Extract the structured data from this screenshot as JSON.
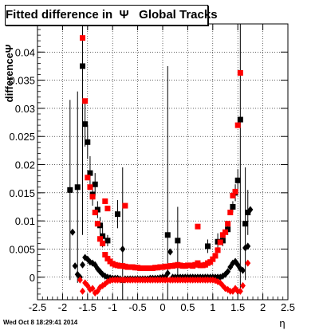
{
  "chart_data": {
    "type": "scatter",
    "title": "Fitted difference in  Ψ   Global Tracks",
    "xlabel": "η",
    "ylabel": "differenceΨ",
    "xlim": [
      -2.5,
      2.5
    ],
    "ylim": [
      -0.004,
      0.045
    ],
    "xticks": [
      -2.5,
      -2,
      -1.5,
      -1,
      -0.5,
      0,
      0.5,
      1,
      1.5,
      2,
      2.5
    ],
    "yticks": [
      0,
      0.005,
      0.01,
      0.015,
      0.02,
      0.025,
      0.03,
      0.035,
      0.04
    ],
    "grid": true,
    "series": [
      {
        "marker": "square",
        "color": "#000000",
        "points": [
          [
            -1.85,
            0.0155
          ],
          [
            -1.7,
            0.016
          ],
          [
            -1.6,
            0.0375
          ],
          [
            -1.55,
            0.0272
          ],
          [
            -1.5,
            0.024
          ],
          [
            -1.45,
            0.0185
          ],
          [
            -1.4,
            0.0147
          ],
          [
            -1.35,
            0.0165
          ],
          [
            -1.3,
            0.012
          ],
          [
            -1.25,
            0.0092
          ],
          [
            -1.2,
            0.0073
          ],
          [
            -1.1,
            0.0065
          ],
          [
            -0.9,
            0.0112
          ],
          [
            -0.8,
            -0.0005
          ],
          [
            0.1,
            0.0075
          ],
          [
            0.3,
            0.0065
          ],
          [
            0.9,
            0.0055
          ],
          [
            1.1,
            0.0063
          ],
          [
            1.2,
            0.0065
          ],
          [
            1.3,
            0.0085
          ],
          [
            1.4,
            0.0125
          ],
          [
            1.45,
            0.015
          ],
          [
            1.5,
            0.0172
          ],
          [
            1.55,
            0.028
          ],
          [
            1.65,
            0.0095
          ],
          [
            1.7,
            0.0115
          ]
        ],
        "errors": [
          0.016,
          0.017,
          0.03,
          0.004,
          0.003,
          0.003,
          0.002,
          0.002,
          0.0015,
          0.0015,
          0.002,
          0.001,
          0.0025,
          0.02,
          0.03,
          0.006,
          0.0012,
          0.0015,
          0.001,
          0.001,
          0.001,
          0.0015,
          0.002,
          0.03,
          0.01,
          0.004
        ]
      },
      {
        "marker": "square",
        "color": "#ff0000",
        "points": [
          [
            -1.6,
            0.0425
          ],
          [
            -1.55,
            0.0313
          ],
          [
            -1.5,
            0.0177
          ],
          [
            -1.45,
            0.016
          ],
          [
            -1.4,
            0.0143
          ],
          [
            -1.35,
            0.0115
          ],
          [
            -1.3,
            0.0095
          ],
          [
            -1.25,
            0.0068
          ],
          [
            -1.2,
            0.006
          ],
          [
            -1.15,
            0.004
          ],
          [
            -1.1,
            0.0033
          ],
          [
            -1.05,
            0.0028
          ],
          [
            -1.0,
            0.0024
          ],
          [
            -0.95,
            0.0022
          ],
          [
            -0.9,
            0.0021
          ],
          [
            -0.85,
            0.002
          ],
          [
            -0.8,
            0.002
          ],
          [
            -0.75,
            0.0019
          ],
          [
            -0.7,
            0.0018
          ],
          [
            -0.65,
            0.0018
          ],
          [
            -0.6,
            0.0018
          ],
          [
            -0.55,
            0.0017
          ],
          [
            -0.5,
            0.0017
          ],
          [
            -0.45,
            0.0016
          ],
          [
            -0.4,
            0.0016
          ],
          [
            -0.35,
            0.0016
          ],
          [
            -0.3,
            0.0016
          ],
          [
            -0.25,
            0.0016
          ],
          [
            -0.2,
            0.0016
          ],
          [
            -0.15,
            0.0017
          ],
          [
            -0.1,
            0.0017
          ],
          [
            -0.05,
            0.0018
          ],
          [
            0.0,
            0.0018
          ],
          [
            0.05,
            0.0019
          ],
          [
            0.1,
            0.0019
          ],
          [
            0.15,
            0.002
          ],
          [
            0.2,
            0.002
          ],
          [
            0.25,
            0.0021
          ],
          [
            0.3,
            0.0022
          ],
          [
            0.35,
            0.0021
          ],
          [
            0.4,
            0.002
          ],
          [
            0.45,
            0.002
          ],
          [
            0.5,
            0.0021
          ],
          [
            0.55,
            0.0021
          ],
          [
            0.6,
            0.002
          ],
          [
            0.65,
            0.0022
          ],
          [
            0.7,
            0.0025
          ],
          [
            0.75,
            0.0021
          ],
          [
            0.8,
            0.0021
          ],
          [
            0.85,
            0.0022
          ],
          [
            0.9,
            0.0025
          ],
          [
            0.95,
            0.0027
          ],
          [
            1.0,
            0.0032
          ],
          [
            1.05,
            0.0038
          ],
          [
            1.1,
            0.0048
          ],
          [
            1.15,
            0.0062
          ],
          [
            1.2,
            0.0075
          ],
          [
            1.25,
            0.008
          ],
          [
            1.3,
            0.0095
          ],
          [
            1.35,
            0.0115
          ],
          [
            1.4,
            0.0145
          ],
          [
            1.45,
            0.0152
          ],
          [
            1.5,
            0.027
          ],
          [
            1.55,
            0.0363
          ],
          [
            -1.15,
            0.0135
          ],
          [
            -1.1,
            0.0122
          ],
          [
            -0.75,
            0.0127
          ],
          [
            0.7,
            0.009
          ]
        ]
      },
      {
        "marker": "diamond",
        "color": "#000000",
        "points": [
          [
            -1.8,
            0.008
          ],
          [
            -1.75,
            0.002
          ],
          [
            -1.7,
            0.0005
          ],
          [
            -1.65,
            0.0
          ],
          [
            -1.6,
            0.0022
          ],
          [
            -1.55,
            0.0035
          ],
          [
            -1.5,
            0.0032
          ],
          [
            -1.45,
            0.0027
          ],
          [
            -1.4,
            0.0025
          ],
          [
            -1.35,
            0.0022
          ],
          [
            -1.3,
            0.0015
          ],
          [
            -1.25,
            0.001
          ],
          [
            -1.2,
            0.0005
          ],
          [
            -1.15,
            0.0002
          ],
          [
            -1.1,
            0.0
          ],
          [
            -1.05,
            -0.0001
          ],
          [
            -1.0,
            -0.0002
          ],
          [
            -0.95,
            -0.0002
          ],
          [
            -0.9,
            -0.0002
          ],
          [
            -0.85,
            -0.0003
          ],
          [
            -0.8,
            0.005
          ],
          [
            -0.75,
            -0.0003
          ],
          [
            -0.7,
            -0.0003
          ],
          [
            -0.65,
            -0.0003
          ],
          [
            -0.6,
            -0.0003
          ],
          [
            -0.55,
            -0.0003
          ],
          [
            -0.5,
            -0.0003
          ],
          [
            -0.45,
            -0.0003
          ],
          [
            -0.4,
            -0.0003
          ],
          [
            -0.35,
            -0.0003
          ],
          [
            -0.3,
            -0.0003
          ],
          [
            -0.25,
            -0.0002
          ],
          [
            -0.2,
            -0.0002
          ],
          [
            -0.15,
            -0.0002
          ],
          [
            -0.1,
            -0.0002
          ],
          [
            -0.05,
            -0.0001
          ],
          [
            0.0,
            0.0
          ],
          [
            0.05,
            0.0
          ],
          [
            0.1,
            0.0007
          ],
          [
            0.15,
            0.0045
          ],
          [
            0.2,
            0.0
          ],
          [
            0.25,
            0.0
          ],
          [
            0.3,
            0.0
          ],
          [
            0.35,
            0.0
          ],
          [
            0.4,
            0.0
          ],
          [
            0.45,
            0.0
          ],
          [
            0.5,
            0.0
          ],
          [
            0.55,
            0.0
          ],
          [
            0.6,
            0.0
          ],
          [
            0.65,
            0.0
          ],
          [
            0.7,
            0.0
          ],
          [
            0.75,
            0.0
          ],
          [
            0.8,
            0.0
          ],
          [
            0.85,
            0.0
          ],
          [
            0.9,
            0.0
          ],
          [
            0.95,
            0.0
          ],
          [
            1.0,
            0.0
          ],
          [
            1.05,
            0.0
          ],
          [
            1.1,
            0.0
          ],
          [
            1.15,
            0.0
          ],
          [
            1.2,
            0.0002
          ],
          [
            1.25,
            0.0005
          ],
          [
            1.3,
            0.001
          ],
          [
            1.35,
            0.0018
          ],
          [
            1.4,
            0.0025
          ],
          [
            1.45,
            0.0028
          ],
          [
            1.5,
            0.0022
          ],
          [
            1.55,
            0.0015
          ],
          [
            1.6,
            0.0012
          ],
          [
            1.65,
            0.0052
          ],
          [
            1.7,
            0.0055
          ],
          [
            1.75,
            0.012
          ]
        ]
      },
      {
        "marker": "diamond",
        "color": "#ff0000",
        "points": [
          [
            -1.65,
            -0.0005
          ],
          [
            -1.6,
            -0.0025
          ],
          [
            -1.55,
            -0.001
          ],
          [
            -1.5,
            -0.0015
          ],
          [
            -1.45,
            -0.0022
          ],
          [
            -1.4,
            -0.002
          ],
          [
            -1.35,
            -0.0028
          ],
          [
            -1.3,
            -0.0025
          ],
          [
            -1.25,
            -0.0018
          ],
          [
            -1.2,
            -0.0015
          ],
          [
            -1.15,
            -0.0012
          ],
          [
            -1.1,
            -0.0008
          ],
          [
            -1.05,
            -0.0006
          ],
          [
            -1.0,
            -0.0005
          ],
          [
            -0.95,
            -0.0005
          ],
          [
            -0.9,
            -0.0005
          ],
          [
            -0.85,
            -0.0005
          ],
          [
            -0.8,
            -0.0005
          ],
          [
            -0.75,
            -0.0005
          ],
          [
            -0.7,
            -0.0005
          ],
          [
            -0.65,
            -0.0005
          ],
          [
            -0.6,
            -0.0005
          ],
          [
            -0.55,
            -0.0005
          ],
          [
            -0.5,
            -0.0005
          ],
          [
            -0.45,
            -0.0005
          ],
          [
            -0.4,
            -0.0005
          ],
          [
            -0.35,
            -0.0005
          ],
          [
            -0.3,
            -0.0005
          ],
          [
            -0.25,
            -0.0005
          ],
          [
            -0.2,
            -0.0005
          ],
          [
            -0.15,
            -0.0005
          ],
          [
            -0.1,
            -0.0005
          ],
          [
            -0.05,
            -0.0005
          ],
          [
            0.0,
            -0.0005
          ],
          [
            0.05,
            -0.0005
          ],
          [
            0.1,
            -0.0005
          ],
          [
            0.15,
            -0.0005
          ],
          [
            0.2,
            -0.0005
          ],
          [
            0.25,
            -0.0005
          ],
          [
            0.3,
            -0.0005
          ],
          [
            0.35,
            -0.0005
          ],
          [
            0.4,
            -0.0005
          ],
          [
            0.45,
            -0.0005
          ],
          [
            0.5,
            -0.0005
          ],
          [
            0.55,
            -0.0005
          ],
          [
            0.6,
            -0.0005
          ],
          [
            0.65,
            -0.0005
          ],
          [
            0.7,
            -0.0005
          ],
          [
            0.75,
            -0.0005
          ],
          [
            0.8,
            -0.0005
          ],
          [
            0.85,
            -0.0005
          ],
          [
            0.9,
            -0.0005
          ],
          [
            0.95,
            -0.0005
          ],
          [
            1.0,
            -0.0005
          ],
          [
            1.05,
            -0.0006
          ],
          [
            1.1,
            -0.0008
          ],
          [
            1.15,
            -0.001
          ],
          [
            1.2,
            -0.0015
          ],
          [
            1.25,
            -0.002
          ],
          [
            1.3,
            -0.0022
          ],
          [
            1.35,
            -0.0025
          ],
          [
            1.4,
            -0.0025
          ],
          [
            1.45,
            -0.002
          ],
          [
            1.5,
            -0.0025
          ],
          [
            1.55,
            -0.0025
          ],
          [
            1.6,
            -0.0015
          ],
          [
            1.7,
            0.0025
          ]
        ]
      }
    ]
  },
  "footer": {
    "timestamp": "Wed Oct  8 18:29:41 2014"
  }
}
